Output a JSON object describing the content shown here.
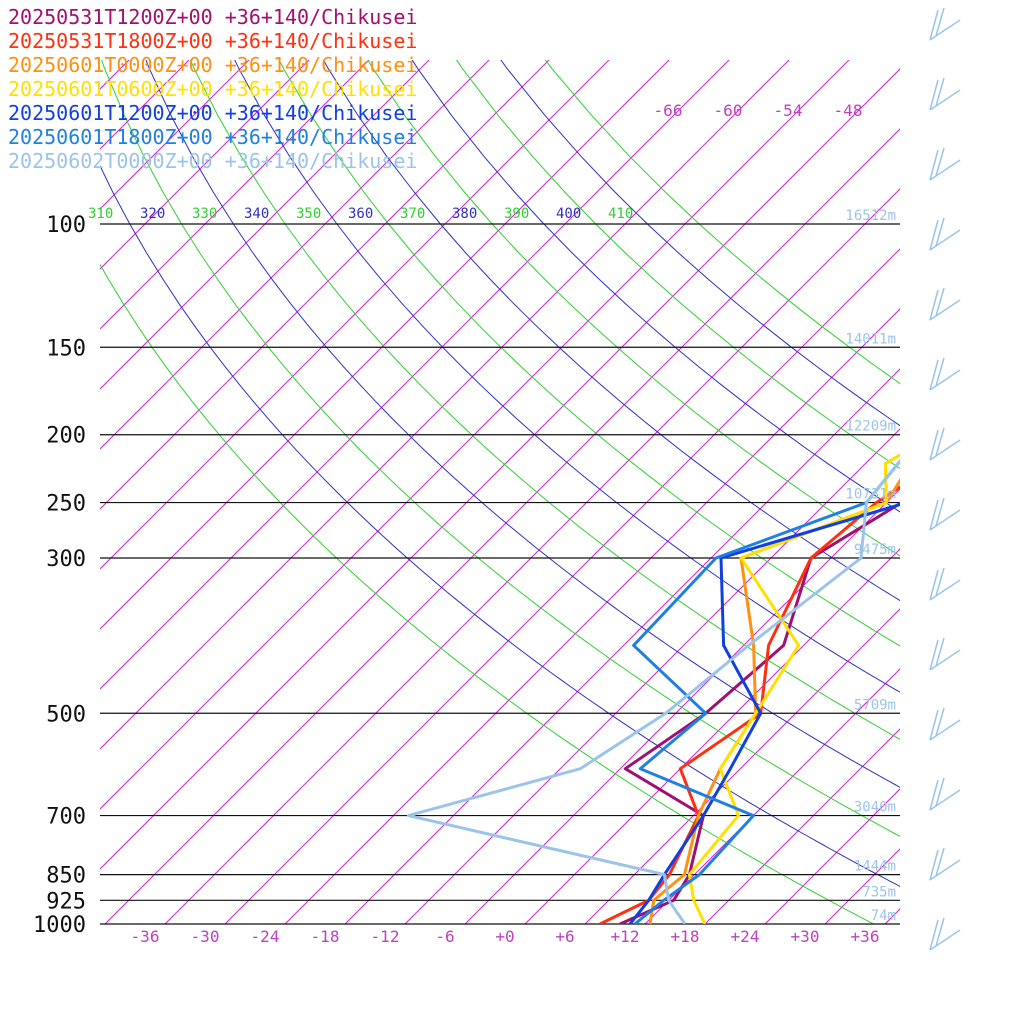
{
  "chart_data": {
    "type": "line",
    "pressure_levels": [
      100,
      150,
      200,
      250,
      300,
      500,
      700,
      850,
      925,
      1000
    ],
    "pressure_labels": [
      "100",
      "150",
      "200",
      "250",
      "300",
      "500",
      "700",
      "850",
      "925",
      "1000"
    ],
    "heights": [
      {
        "p": 100,
        "label": "16512m"
      },
      {
        "p": 150,
        "label": "14011m"
      },
      {
        "p": 200,
        "label": "12209m"
      },
      {
        "p": 250,
        "label": "10731m"
      },
      {
        "p": 300,
        "label": "9475m"
      },
      {
        "p": 500,
        "label": "5709m"
      },
      {
        "p": 700,
        "label": "3040m"
      },
      {
        "p": 850,
        "label": "1444m"
      },
      {
        "p": 925,
        "label": "735m"
      },
      {
        "p": 1000,
        "label": "74m"
      }
    ],
    "temperature_ticks": [
      -36,
      -30,
      -24,
      -18,
      -12,
      -6,
      0,
      6,
      12,
      18,
      24,
      30,
      36
    ],
    "temperature_tick_labels": [
      "-36",
      "-30",
      "-24",
      "-18",
      "-12",
      "-6",
      "+0",
      "+6",
      "+12",
      "+18",
      "+24",
      "+30",
      "+36"
    ],
    "top_temperature_ticks": [
      -66,
      -60,
      -54,
      -48
    ],
    "top_temperature_tick_labels": [
      "-66",
      "-60",
      "-54",
      "-48"
    ],
    "theta_e_labels": [
      "310",
      "320",
      "330",
      "340",
      "350",
      "360",
      "370",
      "380",
      "390",
      "400",
      "410"
    ],
    "series": [
      {
        "name": "20250531T1200Z+00 +36+140/Chikusei",
        "color": "#a01070",
        "points": [
          [
            1000,
            11.5
          ],
          [
            925,
            14.5
          ],
          [
            850,
            13.5
          ],
          [
            700,
            9
          ],
          [
            600,
            -3.5
          ],
          [
            500,
            -1
          ],
          [
            400,
            0
          ],
          [
            300,
            -6
          ],
          [
            250,
            -2.5
          ],
          [
            200,
            3
          ],
          [
            150,
            6
          ],
          [
            130,
            8.5
          ],
          [
            100,
            10.5
          ],
          [
            85,
            11
          ],
          [
            80,
            10.5
          ],
          [
            60,
            22
          ]
        ]
      },
      {
        "name": "20250531T1800Z+00 +36+140/Chikusei",
        "color": "#ff3010",
        "points": [
          [
            1000,
            9.5
          ],
          [
            925,
            12
          ],
          [
            850,
            11.5
          ],
          [
            700,
            8.5
          ],
          [
            600,
            2
          ],
          [
            500,
            4.5
          ],
          [
            400,
            -1.5
          ],
          [
            300,
            -6
          ],
          [
            250,
            -5
          ],
          [
            220,
            -3
          ],
          [
            200,
            1.5
          ],
          [
            150,
            5
          ],
          [
            120,
            7.5
          ],
          [
            100,
            9.5
          ],
          [
            90,
            8.5
          ],
          [
            60,
            22
          ]
        ]
      },
      {
        "name": "20250601T0000Z+00 +36+140/Chikusei",
        "color": "#ff9010",
        "points": [
          [
            1000,
            14.5
          ],
          [
            925,
            12.5
          ],
          [
            850,
            13
          ],
          [
            700,
            8.5
          ],
          [
            600,
            6
          ],
          [
            500,
            4
          ],
          [
            400,
            -3
          ],
          [
            300,
            -13
          ],
          [
            250,
            -4
          ],
          [
            210,
            -6
          ],
          [
            200,
            -3
          ],
          [
            180,
            1
          ],
          [
            150,
            2
          ],
          [
            120,
            6
          ],
          [
            100,
            8.5
          ],
          [
            60,
            22
          ]
        ]
      },
      {
        "name": "20250601T0600Z+00 +36+140/Chikusei",
        "color": "#ffe000",
        "points": [
          [
            1000,
            20
          ],
          [
            925,
            16.5
          ],
          [
            850,
            13.5
          ],
          [
            700,
            12.5
          ],
          [
            600,
            6
          ],
          [
            500,
            4
          ],
          [
            400,
            1.5
          ],
          [
            300,
            -13
          ],
          [
            250,
            -4
          ],
          [
            220,
            -8
          ],
          [
            200,
            -6
          ],
          [
            170,
            2
          ],
          [
            150,
            1.5
          ],
          [
            120,
            5.5
          ],
          [
            100,
            8
          ],
          [
            80,
            10.5
          ],
          [
            60,
            22
          ]
        ]
      },
      {
        "name": "20250601T1200Z+00 +36+140/Chikusei",
        "color": "#1040e0",
        "points": [
          [
            1000,
            12.5
          ],
          [
            925,
            12
          ],
          [
            850,
            11
          ],
          [
            700,
            9
          ],
          [
            600,
            7
          ],
          [
            500,
            4.5
          ],
          [
            400,
            -6
          ],
          [
            300,
            -15
          ],
          [
            250,
            -2
          ],
          [
            200,
            -7
          ],
          [
            190,
            -7
          ],
          [
            150,
            1.5
          ],
          [
            100,
            8.5
          ],
          [
            80,
            12
          ],
          [
            60,
            22
          ]
        ]
      },
      {
        "name": "20250601T1800Z+00 +36+140/Chikusei",
        "color": "#2080e0",
        "points": [
          [
            1000,
            13
          ],
          [
            925,
            13.5
          ],
          [
            850,
            14.5
          ],
          [
            700,
            14
          ],
          [
            600,
            -2
          ],
          [
            500,
            -1
          ],
          [
            400,
            -15
          ],
          [
            300,
            -15.5
          ],
          [
            250,
            -6
          ],
          [
            210,
            -7
          ],
          [
            200,
            -7
          ],
          [
            170,
            -6
          ],
          [
            150,
            -3
          ],
          [
            100,
            9
          ],
          [
            60,
            22
          ]
        ]
      },
      {
        "name": "20250602T0000Z+00 +36+140/Chikusei",
        "color": "#9cc4ea",
        "points": [
          [
            1000,
            18
          ],
          [
            925,
            14
          ],
          [
            850,
            11
          ],
          [
            700,
            -20.5
          ],
          [
            600,
            -8
          ],
          [
            500,
            -5
          ],
          [
            400,
            -3.5
          ],
          [
            300,
            -1
          ],
          [
            250,
            -6
          ],
          [
            210,
            -7
          ],
          [
            200,
            -7
          ],
          [
            170,
            -5.5
          ],
          [
            150,
            -2
          ],
          [
            130,
            -4
          ],
          [
            110,
            2.5
          ],
          [
            100,
            4.5
          ],
          [
            85,
            6
          ],
          [
            60,
            22
          ]
        ]
      }
    ],
    "wind_barb_color": "#9cc4ea"
  }
}
